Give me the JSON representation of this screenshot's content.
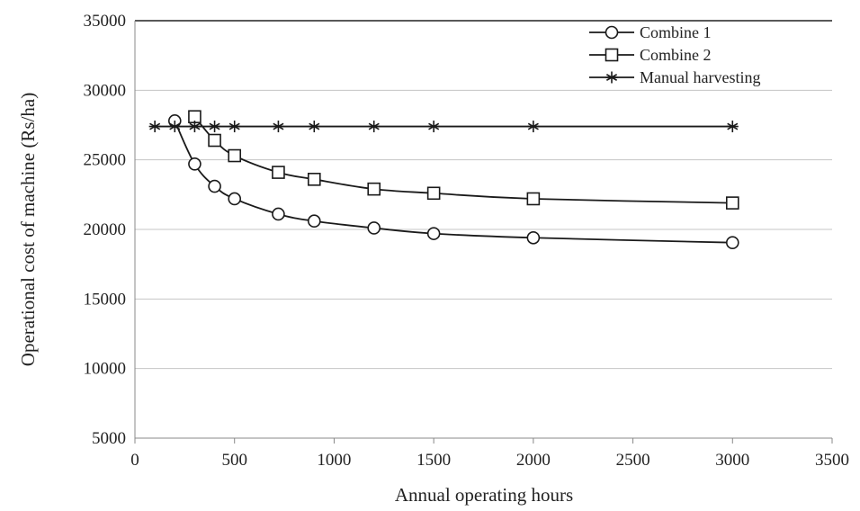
{
  "chart_data": {
    "type": "line",
    "xlabel": "Annual operating hours",
    "ylabel": "Operational cost of machine (Rs/ha)",
    "xlim": [
      0,
      3500
    ],
    "ylim": [
      5000,
      35000
    ],
    "x_ticks": [
      "0",
      "500",
      "1000",
      "1500",
      "2000",
      "2500",
      "3000",
      "3500"
    ],
    "y_ticks": [
      "5000",
      "10000",
      "15000",
      "20000",
      "25000",
      "30000",
      "35000"
    ],
    "grid": "horizontal",
    "legend_position": "top-right",
    "series": [
      {
        "name": "Combine 1",
        "marker": "circle",
        "color": "#1a1a1a",
        "x": [
          200,
          300,
          400,
          500,
          720,
          900,
          1200,
          1500,
          2000,
          3000
        ],
        "y": [
          27800,
          24700,
          23100,
          22200,
          21100,
          20600,
          20100,
          19700,
          19400,
          19050
        ]
      },
      {
        "name": "Combine 2",
        "marker": "square",
        "color": "#1a1a1a",
        "x": [
          300,
          400,
          500,
          720,
          900,
          1200,
          1500,
          2000,
          3000
        ],
        "y": [
          28100,
          26400,
          25300,
          24100,
          23600,
          22900,
          22600,
          22200,
          21900
        ]
      },
      {
        "name": "Manual harvesting",
        "marker": "star",
        "color": "#1a1a1a",
        "x": [
          100,
          200,
          300,
          400,
          500,
          720,
          900,
          1200,
          1500,
          2000,
          3000
        ],
        "y": [
          27400,
          27400,
          27400,
          27400,
          27400,
          27400,
          27400,
          27400,
          27400,
          27400,
          27400
        ]
      }
    ]
  }
}
